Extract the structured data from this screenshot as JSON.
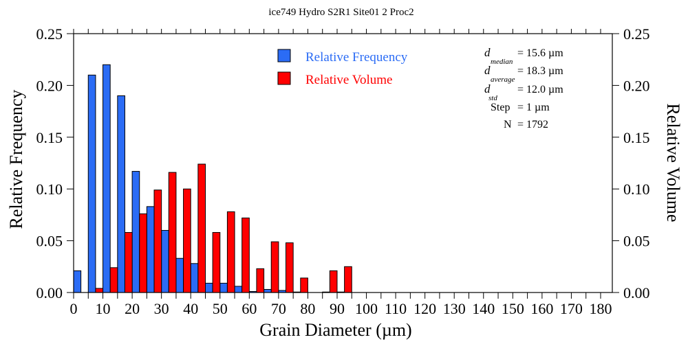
{
  "chart_data": {
    "type": "bar",
    "title": "ice749 Hydro S2R1 Site01 2 Proc2",
    "xlabel": "Grain Diameter (µm)",
    "ylabel": "Relative Frequency",
    "y2label": "Relative Volume",
    "xlim": [
      0,
      184
    ],
    "ylim": [
      0,
      0.25
    ],
    "y2lim": [
      0,
      0.25
    ],
    "bin_width": 5,
    "x_ticks": [
      "0",
      "10",
      "20",
      "30",
      "40",
      "50",
      "60",
      "70",
      "80",
      "90",
      "100",
      "110",
      "120",
      "130",
      "140",
      "150",
      "160",
      "170",
      "180"
    ],
    "y_ticks": [
      "0.00",
      "0.05",
      "0.10",
      "0.15",
      "0.20",
      "0.25"
    ],
    "y2_ticks": [
      "0.00",
      "0.05",
      "0.10",
      "0.15",
      "0.20",
      "0.25"
    ],
    "bin_starts": [
      0,
      5,
      10,
      15,
      20,
      25,
      30,
      35,
      40,
      45,
      50,
      55,
      60,
      65,
      70,
      75,
      80,
      85,
      90
    ],
    "series": [
      {
        "name": "Relative Frequency",
        "color": "#2b6cf5",
        "axis": "left",
        "values": [
          0.021,
          0.21,
          0.22,
          0.19,
          0.117,
          0.083,
          0.06,
          0.033,
          0.028,
          0.009,
          0.009,
          0.006,
          0.001,
          0.003,
          0.002,
          0.0005,
          0,
          0.0005,
          0.0005
        ]
      },
      {
        "name": "Relative Volume",
        "color": "#ff0000",
        "axis": "right",
        "values": [
          0,
          0.004,
          0.024,
          0.058,
          0.076,
          0.099,
          0.116,
          0.1,
          0.124,
          0.058,
          0.078,
          0.072,
          0.023,
          0.049,
          0.048,
          0.014,
          0,
          0.021,
          0.025
        ]
      }
    ],
    "legend": {
      "placement": "top-center",
      "entries": [
        {
          "label": "Relative Frequency",
          "color": "#2b6cf5"
        },
        {
          "label": "Relative Volume",
          "color": "#ff0000"
        }
      ]
    },
    "stats": {
      "median": {
        "symbol": "d",
        "sub": "median",
        "value": "=  15.6 µm"
      },
      "average": {
        "symbol": "d",
        "sub": "average",
        "value": "=  18.3 µm"
      },
      "std": {
        "symbol": "d",
        "sub": "std",
        "value": "=  12.0 µm"
      },
      "step": {
        "label": "Step",
        "value": "=  1 µm"
      },
      "n": {
        "label": "N",
        "value": "= 1792"
      }
    },
    "grid": false
  }
}
